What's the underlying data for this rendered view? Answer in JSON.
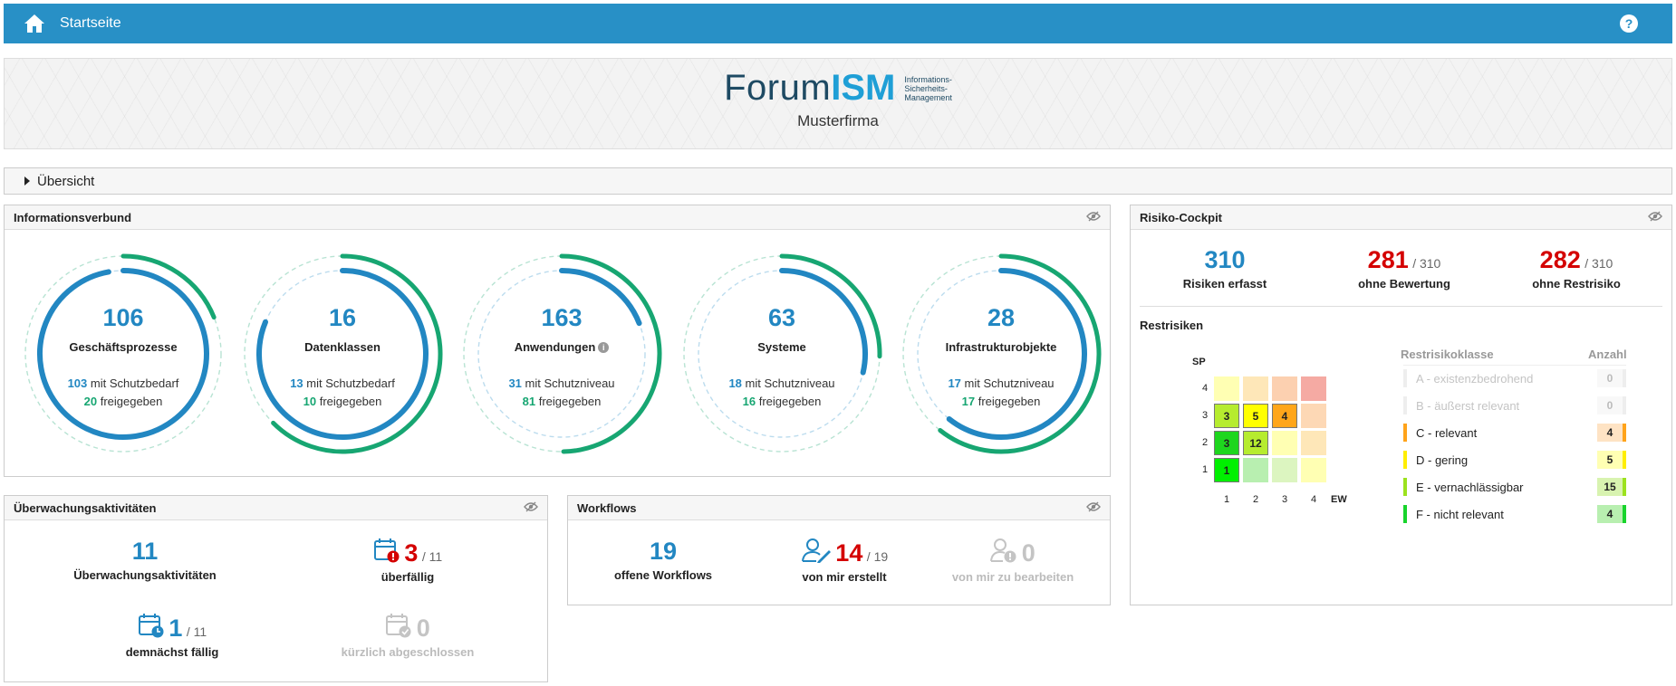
{
  "topbar": {
    "title": "Startseite"
  },
  "banner": {
    "logo_forum": "Forum",
    "logo_ism": "ISM",
    "logo_tag_1": "Informations-",
    "logo_tag_2": "Sicherheits-",
    "logo_tag_3": "Management",
    "company": "Musterfirma"
  },
  "overview": {
    "label": "Übersicht"
  },
  "informationsverbund": {
    "title": "Informationsverbund",
    "circles": [
      {
        "num": "106",
        "label": "Geschäftsprozesse",
        "sub1_num": "103",
        "sub1_text": " mit Schutzbedarf",
        "sub2_num": "20",
        "sub2_text": " freigegeben",
        "progress_blue": 0.972,
        "progress_green": 0.189
      },
      {
        "num": "16",
        "label": "Datenklassen",
        "sub1_num": "13",
        "sub1_text": " mit Schutzbedarf",
        "sub2_num": "10",
        "sub2_text": " freigegeben",
        "progress_blue": 0.8125,
        "progress_green": 0.625
      },
      {
        "num": "163",
        "label": "Anwendungen",
        "sub1_num": "31",
        "sub1_text": " mit Schutzniveau",
        "sub2_num": "81",
        "sub2_text": " freigegeben",
        "progress_blue": 0.19,
        "progress_green": 0.497
      },
      {
        "num": "63",
        "label": "Systeme",
        "sub1_num": "18",
        "sub1_text": " mit Schutzniveau",
        "sub2_num": "16",
        "sub2_text": " freigegeben",
        "progress_blue": 0.286,
        "progress_green": 0.254
      },
      {
        "num": "28",
        "label": "Infrastrukturobjekte",
        "sub1_num": "17",
        "sub1_text": " mit Schutzniveau",
        "sub2_num": "17",
        "sub2_text": " freigegeben",
        "progress_blue": 0.607,
        "progress_green": 0.607
      }
    ]
  },
  "ueberwachung": {
    "title": "Überwachungsaktivitäten",
    "total": "11",
    "total_label": "Überwachungsaktivitäten",
    "overdue": "3",
    "overdue_of": "/ 11",
    "overdue_label": "überfällig",
    "due_soon": "1",
    "due_soon_of": "/ 11",
    "due_soon_label": "demnächst fällig",
    "completed": "0",
    "completed_label": "kürzlich abgeschlossen"
  },
  "workflows": {
    "title": "Workflows",
    "open": "19",
    "open_label": "offene Workflows",
    "created": "14",
    "created_of": "/ 19",
    "created_label": "von mir erstellt",
    "to_edit": "0",
    "to_edit_label": "von mir zu bearbeiten"
  },
  "risiko": {
    "title": "Risiko-Cockpit",
    "captured": "310",
    "captured_label": "Risiken erfasst",
    "no_rating": "281",
    "no_rating_of": "/ 310",
    "no_rating_label": "ohne Bewertung",
    "no_residual": "282",
    "no_residual_of": "/ 310",
    "no_residual_label": "ohne Restrisiko",
    "restrisiken_title": "Restrisiken",
    "y_axis": "SP",
    "x_axis": "EW",
    "ticks": [
      "1",
      "2",
      "3",
      "4"
    ],
    "matrix": [
      {
        "row": 4,
        "cells": [
          "",
          "",
          "",
          ""
        ]
      },
      {
        "row": 3,
        "cells": [
          "3",
          "5",
          "4",
          ""
        ]
      },
      {
        "row": 2,
        "cells": [
          "3",
          "12",
          "",
          ""
        ]
      },
      {
        "row": 1,
        "cells": [
          "1",
          "",
          "",
          ""
        ]
      }
    ],
    "class_header": "Restrisikoklasse",
    "count_header": "Anzahl",
    "classes": [
      {
        "name": "A - existenzbedrohend",
        "count": "0",
        "color": "#f4a09a"
      },
      {
        "name": "B - äußerst relevant",
        "count": "0",
        "color": "#f8c8a8"
      },
      {
        "name": "C - relevant",
        "count": "4",
        "color": "#ffa31a"
      },
      {
        "name": "D - gering",
        "count": "5",
        "color": "#ffee00"
      },
      {
        "name": "E - vernachlässigbar",
        "count": "15",
        "color": "#9ce21e"
      },
      {
        "name": "F - nicht relevant",
        "count": "4",
        "color": "#18d42c"
      }
    ]
  }
}
